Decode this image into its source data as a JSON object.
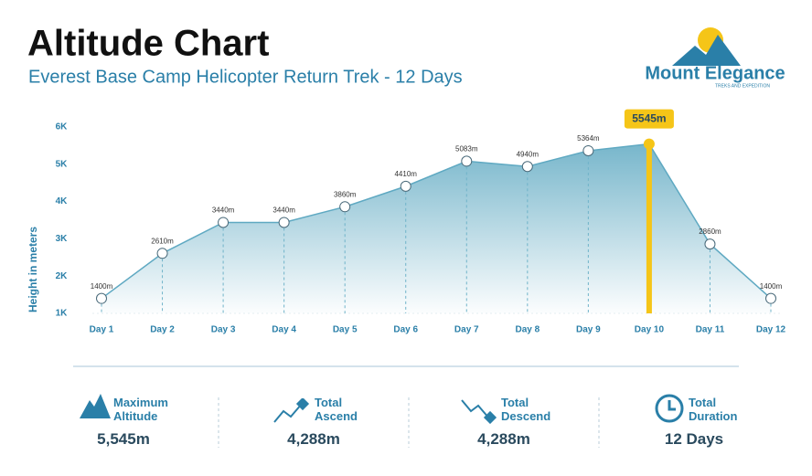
{
  "header": {
    "title": "Altitude Chart",
    "subtitle": "Everest Base Camp Helicopter Return Trek - 12 Days"
  },
  "logo": {
    "name": "Mount Elegance",
    "tagline": "TREKS AND EXPEDITION"
  },
  "chart_data": {
    "type": "line",
    "y_label": "Height in meters",
    "categories": [
      "Day 1",
      "Day 2",
      "Day 3",
      "Day 4",
      "Day 5",
      "Day 6",
      "Day 7",
      "Day 8",
      "Day 9",
      "Day 10",
      "Day 11",
      "Day 12"
    ],
    "values": [
      1400,
      2610,
      3440,
      3440,
      3860,
      4410,
      5083,
      4940,
      5364,
      5545,
      2860,
      1400
    ],
    "value_labels": [
      "1400m",
      "2610m",
      "3440m",
      "3440m",
      "3860m",
      "4410m",
      "5083m",
      "4940m",
      "5364m",
      "5545m",
      "2860m",
      "1400m"
    ],
    "color": "#5fa9c2",
    "highlight_color": "#f5c518",
    "ylim": [
      1000,
      6000
    ],
    "yticks": [
      {
        "value": 1000,
        "label": "1K"
      },
      {
        "value": 2000,
        "label": "2K"
      },
      {
        "value": 3000,
        "label": "3K"
      },
      {
        "value": 4000,
        "label": "4K"
      },
      {
        "value": 5000,
        "label": "5K"
      },
      {
        "value": 6000,
        "label": "6K"
      }
    ]
  },
  "stats": [
    {
      "label": "Maximum Altitude",
      "value": "5,545m"
    },
    {
      "label": "Total Ascend",
      "value": "4,288m"
    },
    {
      "label": "Total Descend",
      "value": "4,288m"
    },
    {
      "label": "Total Duration",
      "value": "12 Days"
    }
  ]
}
